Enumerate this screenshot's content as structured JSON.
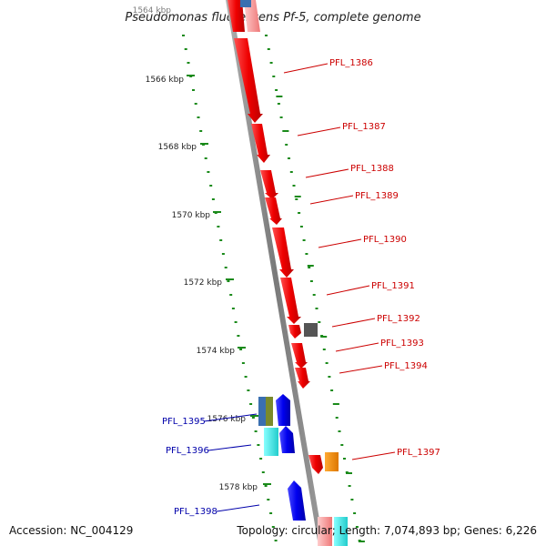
{
  "title": "Pseudomonas fluorescens Pf-5, complete genome",
  "footer": {
    "accession": "Accession: NC_004129",
    "topology": "Topology: circular; Length: 7,074,893 bp; Genes: 6,226"
  },
  "scale_labels": [
    "1564 kbp",
    "1566 kbp",
    "1568 kbp",
    "1570 kbp",
    "1572 kbp",
    "1574 kbp",
    "1576 kbp",
    "1578 kbp"
  ],
  "gene_labels": [
    {
      "name": "PFL_1386",
      "color": "#cc0000"
    },
    {
      "name": "PFL_1387",
      "color": "#cc0000"
    },
    {
      "name": "PFL_1388",
      "color": "#cc0000"
    },
    {
      "name": "PFL_1389",
      "color": "#cc0000"
    },
    {
      "name": "PFL_1390",
      "color": "#cc0000"
    },
    {
      "name": "PFL_1391",
      "color": "#cc0000"
    },
    {
      "name": "PFL_1392",
      "color": "#cc0000"
    },
    {
      "name": "PFL_1393",
      "color": "#cc0000"
    },
    {
      "name": "PFL_1394",
      "color": "#cc0000"
    },
    {
      "name": "PFL_1395",
      "color": "#0000aa"
    },
    {
      "name": "PFL_1396",
      "color": "#0000aa"
    },
    {
      "name": "PFL_1397",
      "color": "#cc0000"
    },
    {
      "name": "PFL_1398",
      "color": "#0000aa"
    }
  ],
  "colors": {
    "forward_gene": "#ff0000",
    "reverse_gene": "#0000ee",
    "backbone": "#808080",
    "tick": "#1a8a1a",
    "cyan_feature": "#33dddd",
    "orange_feature": "#ff8800",
    "gray_feature": "#555555",
    "olive_feature": "#7a8a2a",
    "steel_feature": "#3a6fb0"
  }
}
